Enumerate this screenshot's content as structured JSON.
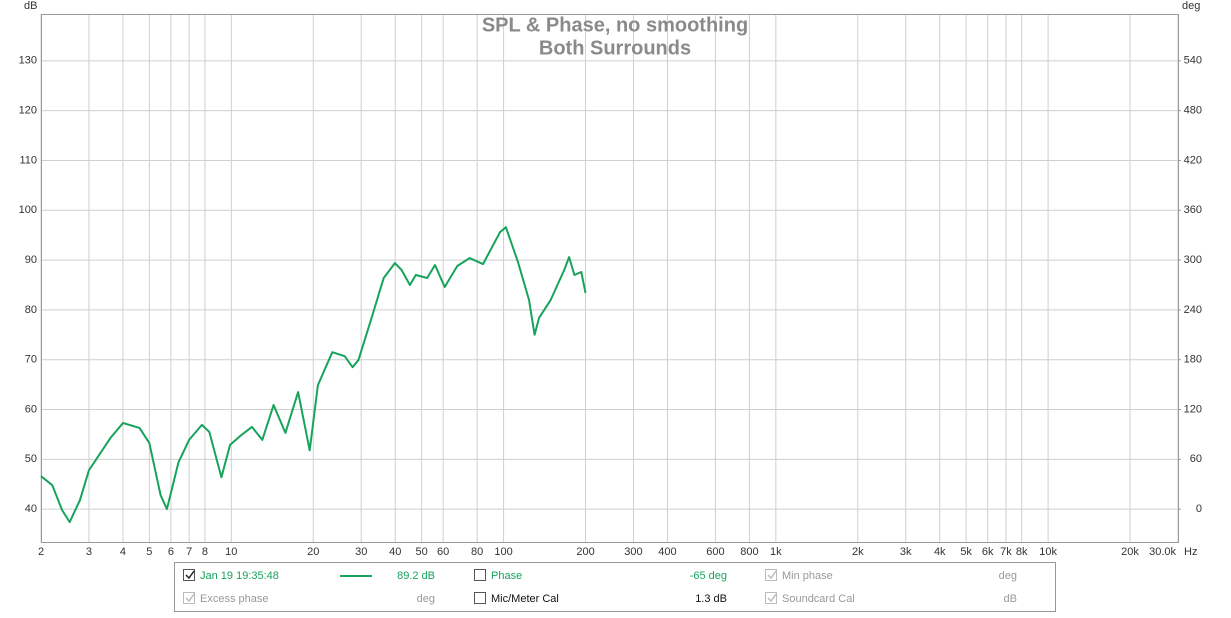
{
  "chart_data": {
    "type": "line",
    "title": "SPL & Phase, no smoothing",
    "subtitle": "Both Surrounds",
    "y_label": "dB",
    "y2_label": "deg",
    "x_label": "Hz",
    "x": [
      2,
      2.2,
      2.39,
      2.55,
      2.78,
      3.0,
      3.6,
      4.0,
      4.6,
      5.0,
      5.5,
      5.8,
      6.4,
      7.0,
      7.8,
      8.3,
      9.2,
      9.9,
      10.9,
      11.9,
      13.0,
      14.3,
      15.8,
      17.6,
      19.4,
      20.8,
      23.5,
      26.1,
      27.9,
      29.3,
      33,
      36.3,
      39.9,
      42.2,
      45.3,
      47.6,
      52.4,
      56,
      60.8,
      67.6,
      75,
      84,
      97,
      102,
      113,
      124,
      130,
      135,
      149,
      167,
      174,
      182,
      193,
      200
    ],
    "series": [
      {
        "name": "Jan 19 19:35:48",
        "color": "#17a35c",
        "values": [
          46.6,
          44.8,
          39.8,
          37.4,
          41.8,
          47.8,
          54.3,
          57.3,
          56.3,
          53.3,
          42.8,
          40.0,
          49.4,
          53.9,
          56.9,
          55.5,
          46.4,
          52.9,
          54.9,
          56.5,
          53.9,
          60.9,
          55.3,
          63.5,
          51.8,
          64.9,
          71.5,
          70.7,
          68.5,
          69.9,
          79,
          86.4,
          89.4,
          88.0,
          85,
          87,
          86.4,
          89,
          84.6,
          88.8,
          90.4,
          89.2,
          95.6,
          96.6,
          89.6,
          82,
          75,
          78.4,
          82,
          88,
          90.6,
          87,
          87.6,
          83.4
        ]
      }
    ],
    "xscale": "log",
    "xlim": [
      2,
      30000
    ],
    "xticks": [
      2,
      3,
      4,
      5,
      6,
      7,
      8,
      10,
      20,
      30,
      40,
      50,
      60,
      80,
      100,
      200,
      300,
      400,
      600,
      800,
      {
        "value": 1000,
        "label": "1k"
      },
      {
        "value": 2000,
        "label": "2k"
      },
      {
        "value": 3000,
        "label": "3k"
      },
      {
        "value": 4000,
        "label": "4k"
      },
      {
        "value": 5000,
        "label": "5k"
      },
      {
        "value": 6000,
        "label": "6k"
      },
      {
        "value": 7000,
        "label": "7k"
      },
      {
        "value": 8000,
        "label": "8k"
      },
      {
        "value": 10000,
        "label": "10k"
      },
      {
        "value": 20000,
        "label": "20k"
      },
      {
        "value": 30000,
        "label": "30.0k"
      }
    ],
    "ylim": [
      33.4,
      139.4
    ],
    "yticks": [
      40,
      50,
      60,
      70,
      80,
      90,
      100,
      110,
      120,
      130
    ],
    "y2lim": [
      -39.6,
      596.4
    ],
    "y2ticks": [
      0,
      60,
      120,
      180,
      240,
      300,
      360,
      420,
      480,
      540
    ],
    "grid": true
  },
  "controls": {
    "row1": {
      "value": "89.2 dB",
      "phase": "Phase",
      "phase_value": "-65 deg",
      "min_phase": "Min phase",
      "min_phase_value": "deg"
    },
    "row2": {
      "excess": "Excess phase",
      "excess_value": "deg",
      "mic": "Mic/Meter Cal",
      "mic_value": "1.3 dB",
      "soundcard": "Soundcard Cal",
      "soundcard_value": "dB"
    }
  }
}
